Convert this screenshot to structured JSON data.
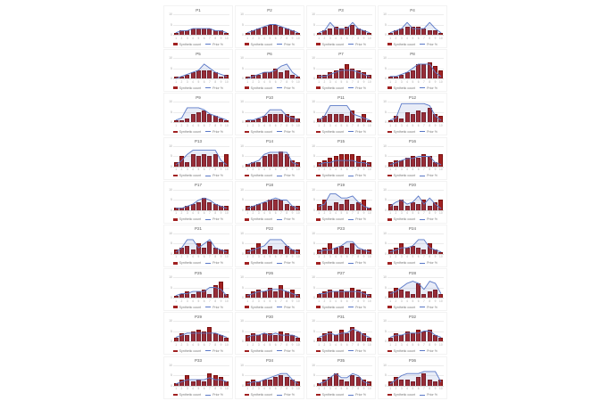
{
  "page": {
    "background": "#ffffff"
  },
  "legend": {
    "bars_label": "Synthetic count",
    "line_label": "Prior %"
  },
  "colors": {
    "bar": "#a12121",
    "bar_border": "#7a1111",
    "line": "#5b79c7",
    "line_fill": "rgba(91,121,199,0.14)",
    "grid": "#ececec",
    "axis_text": "#aaaaaa",
    "title_text": "#555555"
  },
  "axes": {
    "x_ticks": [
      "1",
      "2",
      "3",
      "4",
      "5",
      "6",
      "7",
      "8",
      "9",
      "10"
    ],
    "y_ticks": [
      "10",
      "5",
      "0"
    ],
    "ylim": [
      0,
      10
    ],
    "grid": "on",
    "legend_position": "bottom"
  },
  "chart_data": [
    {
      "type": "bar+line",
      "title": "P1",
      "bars": [
        1,
        2,
        2,
        3,
        3,
        3,
        3,
        2,
        2,
        1
      ],
      "line": [
        1,
        2,
        2,
        3,
        3,
        3,
        3,
        2,
        2,
        1
      ]
    },
    {
      "type": "bar+line",
      "title": "P2",
      "bars": [
        1,
        2,
        3,
        4,
        5,
        5,
        4,
        3,
        2,
        1
      ],
      "line": [
        1,
        2,
        3,
        4,
        5,
        5,
        4,
        3,
        2,
        1
      ]
    },
    {
      "type": "bar+line",
      "title": "P3",
      "bars": [
        1,
        2,
        3,
        4,
        3,
        4,
        5,
        3,
        2,
        1
      ],
      "line": [
        1,
        2,
        6,
        3,
        3,
        3,
        6,
        3,
        2,
        1
      ]
    },
    {
      "type": "bar+line",
      "title": "P4",
      "bars": [
        1,
        2,
        3,
        4,
        4,
        4,
        3,
        2,
        2,
        1
      ],
      "line": [
        1,
        2,
        3,
        6,
        3,
        3,
        3,
        6,
        3,
        1
      ]
    },
    {
      "type": "bar+line",
      "title": "P5",
      "bars": [
        1,
        1,
        2,
        3,
        4,
        4,
        4,
        3,
        1,
        2
      ],
      "line": [
        0,
        1,
        2,
        3,
        4,
        7,
        5,
        3,
        2,
        1
      ]
    },
    {
      "type": "bar+line",
      "title": "P6",
      "bars": [
        1,
        2,
        2,
        3,
        3,
        5,
        3,
        4,
        2,
        1
      ],
      "line": [
        0,
        1,
        2,
        3,
        3,
        4,
        6,
        7,
        3,
        1
      ]
    },
    {
      "type": "bar+line",
      "title": "P7",
      "bars": [
        2,
        2,
        3,
        4,
        5,
        7,
        5,
        4,
        3,
        2
      ],
      "line": [
        1,
        1,
        2,
        3,
        4,
        4,
        4,
        3,
        2,
        1
      ]
    },
    {
      "type": "bar+line",
      "title": "P8",
      "bars": [
        1,
        1,
        2,
        3,
        4,
        7,
        7,
        8,
        6,
        4
      ],
      "line": [
        1,
        1,
        2,
        3,
        5,
        7,
        7,
        7,
        3,
        1
      ]
    },
    {
      "type": "bar+line",
      "title": "P9",
      "bars": [
        1,
        1,
        2,
        4,
        5,
        6,
        4,
        3,
        2,
        1
      ],
      "line": [
        1,
        2,
        7,
        7,
        7,
        6,
        4,
        3,
        2,
        1
      ]
    },
    {
      "type": "bar+line",
      "title": "P10",
      "bars": [
        1,
        1,
        2,
        3,
        4,
        4,
        4,
        4,
        3,
        2
      ],
      "line": [
        1,
        1,
        2,
        3,
        6,
        6,
        6,
        3,
        2,
        1
      ]
    },
    {
      "type": "bar+line",
      "title": "P11",
      "bars": [
        2,
        3,
        4,
        4,
        4,
        3,
        6,
        2,
        4,
        1
      ],
      "line": [
        1,
        3,
        8,
        8,
        8,
        8,
        4,
        3,
        2,
        1
      ]
    },
    {
      "type": "bar+line",
      "title": "P12",
      "bars": [
        1,
        3,
        2,
        5,
        4,
        6,
        5,
        7,
        4,
        3
      ],
      "line": [
        1,
        2,
        9,
        9,
        9,
        9,
        9,
        8,
        3,
        1
      ]
    },
    {
      "type": "bar+line",
      "title": "P13",
      "bars": [
        2,
        5,
        2,
        6,
        5,
        6,
        5,
        6,
        2,
        6
      ],
      "line": [
        1,
        3,
        6,
        8,
        8,
        8,
        8,
        8,
        3,
        1
      ]
    },
    {
      "type": "bar+line",
      "title": "P14",
      "bars": [
        1,
        2,
        2,
        5,
        6,
        6,
        7,
        6,
        3,
        2
      ],
      "line": [
        1,
        2,
        3,
        6,
        7,
        7,
        7,
        7,
        2,
        1
      ]
    },
    {
      "type": "bar+line",
      "title": "P15",
      "bars": [
        2,
        3,
        4,
        5,
        6,
        6,
        6,
        5,
        3,
        2
      ],
      "line": [
        1,
        2,
        2,
        3,
        3,
        3,
        3,
        2,
        2,
        1
      ]
    },
    {
      "type": "bar+line",
      "title": "P16",
      "bars": [
        2,
        3,
        3,
        4,
        5,
        4,
        6,
        5,
        2,
        6
      ],
      "line": [
        1,
        2,
        3,
        4,
        4,
        5,
        5,
        5,
        2,
        1
      ]
    },
    {
      "type": "bar+line",
      "title": "P17",
      "bars": [
        1,
        1,
        2,
        3,
        4,
        6,
        4,
        3,
        2,
        2
      ],
      "line": [
        1,
        1,
        2,
        3,
        5,
        6,
        5,
        3,
        2,
        1
      ]
    },
    {
      "type": "bar+line",
      "title": "P18",
      "bars": [
        2,
        2,
        3,
        4,
        5,
        5,
        5,
        3,
        2,
        2
      ],
      "line": [
        1,
        2,
        3,
        4,
        5,
        6,
        5,
        5,
        2,
        1
      ]
    },
    {
      "type": "bar+line",
      "title": "P19",
      "bars": [
        3,
        5,
        2,
        4,
        3,
        5,
        3,
        4,
        5,
        1
      ],
      "line": [
        2,
        3,
        8,
        8,
        6,
        6,
        7,
        4,
        2,
        1
      ]
    },
    {
      "type": "bar+line",
      "title": "P20",
      "bars": [
        3,
        2,
        5,
        2,
        4,
        3,
        5,
        2,
        4,
        5
      ],
      "line": [
        2,
        4,
        5,
        3,
        4,
        7,
        3,
        6,
        3,
        1
      ]
    },
    {
      "type": "bar+line",
      "title": "P21",
      "bars": [
        2,
        3,
        4,
        2,
        5,
        3,
        6,
        3,
        2,
        2
      ],
      "line": [
        1,
        3,
        7,
        7,
        3,
        5,
        7,
        3,
        2,
        1
      ]
    },
    {
      "type": "bar+line",
      "title": "P22",
      "bars": [
        2,
        3,
        5,
        2,
        4,
        2,
        2,
        4,
        2,
        2
      ],
      "line": [
        1,
        2,
        3,
        4,
        7,
        7,
        7,
        4,
        2,
        1
      ]
    },
    {
      "type": "bar+line",
      "title": "P23",
      "bars": [
        2,
        3,
        5,
        3,
        4,
        3,
        5,
        2,
        2,
        2
      ],
      "line": [
        1,
        2,
        2,
        3,
        4,
        6,
        6,
        3,
        2,
        1
      ]
    },
    {
      "type": "bar+line",
      "title": "P24",
      "bars": [
        2,
        3,
        5,
        3,
        4,
        3,
        2,
        5,
        2,
        1
      ],
      "line": [
        1,
        2,
        3,
        3,
        4,
        7,
        7,
        3,
        2,
        1
      ]
    },
    {
      "type": "bar+line",
      "title": "P25",
      "bars": [
        1,
        2,
        3,
        2,
        3,
        4,
        2,
        6,
        8,
        2
      ],
      "line": [
        1,
        2,
        2,
        3,
        3,
        3,
        5,
        5,
        4,
        1
      ]
    },
    {
      "type": "bar+line",
      "title": "P26",
      "bars": [
        2,
        3,
        4,
        3,
        5,
        3,
        6,
        3,
        4,
        2
      ],
      "line": [
        1,
        2,
        3,
        3,
        4,
        4,
        4,
        3,
        2,
        1
      ]
    },
    {
      "type": "bar+line",
      "title": "P27",
      "bars": [
        2,
        3,
        4,
        3,
        4,
        3,
        5,
        4,
        3,
        2
      ],
      "line": [
        2,
        2,
        3,
        3,
        3,
        3,
        3,
        3,
        2,
        1
      ]
    },
    {
      "type": "bar+line",
      "title": "P28",
      "bars": [
        3,
        5,
        4,
        3,
        2,
        7,
        2,
        3,
        4,
        2
      ],
      "line": [
        2,
        3,
        5,
        7,
        8,
        7,
        4,
        8,
        7,
        2
      ]
    },
    {
      "type": "bar+line",
      "title": "P29",
      "bars": [
        2,
        4,
        3,
        5,
        6,
        5,
        7,
        4,
        3,
        2
      ],
      "line": [
        2,
        3,
        4,
        4,
        4,
        4,
        4,
        4,
        3,
        2
      ]
    },
    {
      "type": "bar+line",
      "title": "P30",
      "bars": [
        3,
        4,
        3,
        4,
        4,
        3,
        5,
        4,
        3,
        2
      ],
      "line": [
        2,
        3,
        3,
        4,
        3,
        4,
        3,
        3,
        3,
        2
      ]
    },
    {
      "type": "bar+line",
      "title": "P31",
      "bars": [
        2,
        4,
        5,
        3,
        6,
        4,
        7,
        5,
        4,
        2
      ],
      "line": [
        2,
        3,
        4,
        3,
        4,
        4,
        6,
        5,
        3,
        2
      ]
    },
    {
      "type": "bar+line",
      "title": "P32",
      "bars": [
        2,
        4,
        3,
        5,
        4,
        6,
        5,
        6,
        3,
        2
      ],
      "line": [
        2,
        3,
        3,
        4,
        4,
        4,
        5,
        5,
        3,
        2
      ]
    },
    {
      "type": "bar+line",
      "title": "P33",
      "bars": [
        1,
        3,
        5,
        2,
        3,
        2,
        6,
        5,
        4,
        2
      ],
      "line": [
        1,
        2,
        3,
        3,
        3,
        3,
        4,
        3,
        3,
        2
      ]
    },
    {
      "type": "bar+line",
      "title": "P34",
      "bars": [
        2,
        3,
        2,
        3,
        3,
        4,
        5,
        4,
        3,
        2
      ],
      "line": [
        1,
        2,
        2,
        3,
        4,
        5,
        6,
        6,
        3,
        1
      ]
    },
    {
      "type": "bar+line",
      "title": "P35",
      "bars": [
        1,
        3,
        4,
        6,
        3,
        2,
        5,
        4,
        3,
        2
      ],
      "line": [
        1,
        2,
        4,
        6,
        4,
        4,
        6,
        5,
        2,
        1
      ]
    },
    {
      "type": "bar+line",
      "title": "P36",
      "bars": [
        2,
        4,
        3,
        3,
        2,
        4,
        6,
        3,
        2,
        3
      ],
      "line": [
        1,
        3,
        5,
        6,
        6,
        6,
        7,
        7,
        7,
        2
      ]
    }
  ]
}
